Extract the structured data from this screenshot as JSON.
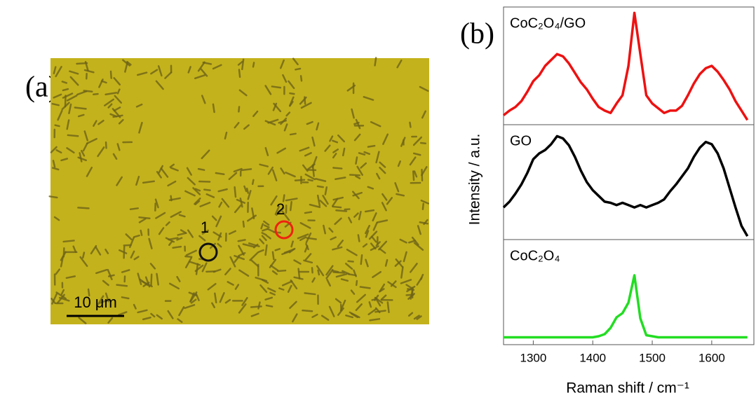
{
  "panel_labels": [
    "(a)",
    "(b)"
  ],
  "micrograph": {
    "markers": [
      "1",
      "2"
    ],
    "scale_bar": "10 μm"
  },
  "chart_data": {
    "type": "line",
    "xlabel": "Raman shift / cm⁻¹",
    "ylabel": "Intensity / a.u.",
    "xlim": [
      1250,
      1665
    ],
    "xticks": [
      1300,
      1400,
      1500,
      1600
    ],
    "ylim": [
      0,
      1
    ],
    "x": [
      1250,
      1260,
      1270,
      1280,
      1290,
      1300,
      1310,
      1320,
      1330,
      1340,
      1350,
      1360,
      1370,
      1380,
      1390,
      1400,
      1410,
      1420,
      1430,
      1440,
      1450,
      1460,
      1470,
      1480,
      1490,
      1500,
      1510,
      1520,
      1530,
      1540,
      1550,
      1560,
      1570,
      1580,
      1590,
      1600,
      1610,
      1620,
      1630,
      1640,
      1650,
      1660
    ],
    "series": [
      {
        "name": "CoC₂O₄/GO",
        "color": "#ee1111",
        "values": [
          0.08,
          0.12,
          0.15,
          0.2,
          0.28,
          0.37,
          0.42,
          0.5,
          0.55,
          0.6,
          0.58,
          0.52,
          0.44,
          0.36,
          0.3,
          0.22,
          0.15,
          0.12,
          0.1,
          0.18,
          0.25,
          0.5,
          0.95,
          0.6,
          0.25,
          0.18,
          0.14,
          0.1,
          0.12,
          0.12,
          0.16,
          0.25,
          0.35,
          0.43,
          0.48,
          0.5,
          0.45,
          0.38,
          0.3,
          0.2,
          0.12,
          0.04
        ]
      },
      {
        "name": "GO",
        "color": "#000000",
        "values": [
          0.28,
          0.33,
          0.4,
          0.48,
          0.58,
          0.7,
          0.75,
          0.78,
          0.83,
          0.9,
          0.88,
          0.82,
          0.72,
          0.6,
          0.5,
          0.43,
          0.38,
          0.33,
          0.32,
          0.3,
          0.32,
          0.3,
          0.28,
          0.3,
          0.28,
          0.3,
          0.32,
          0.35,
          0.42,
          0.48,
          0.55,
          0.62,
          0.72,
          0.8,
          0.85,
          0.83,
          0.75,
          0.62,
          0.45,
          0.28,
          0.12,
          0.03
        ]
      },
      {
        "name": "CoC₂O₄",
        "color": "#22dd22",
        "values": [
          0.07,
          0.07,
          0.07,
          0.07,
          0.07,
          0.07,
          0.07,
          0.07,
          0.07,
          0.07,
          0.07,
          0.07,
          0.07,
          0.07,
          0.07,
          0.07,
          0.08,
          0.1,
          0.16,
          0.26,
          0.3,
          0.4,
          0.66,
          0.25,
          0.09,
          0.08,
          0.07,
          0.07,
          0.07,
          0.07,
          0.07,
          0.07,
          0.07,
          0.07,
          0.07,
          0.07,
          0.07,
          0.07,
          0.07,
          0.07,
          0.07,
          0.07
        ]
      }
    ]
  }
}
